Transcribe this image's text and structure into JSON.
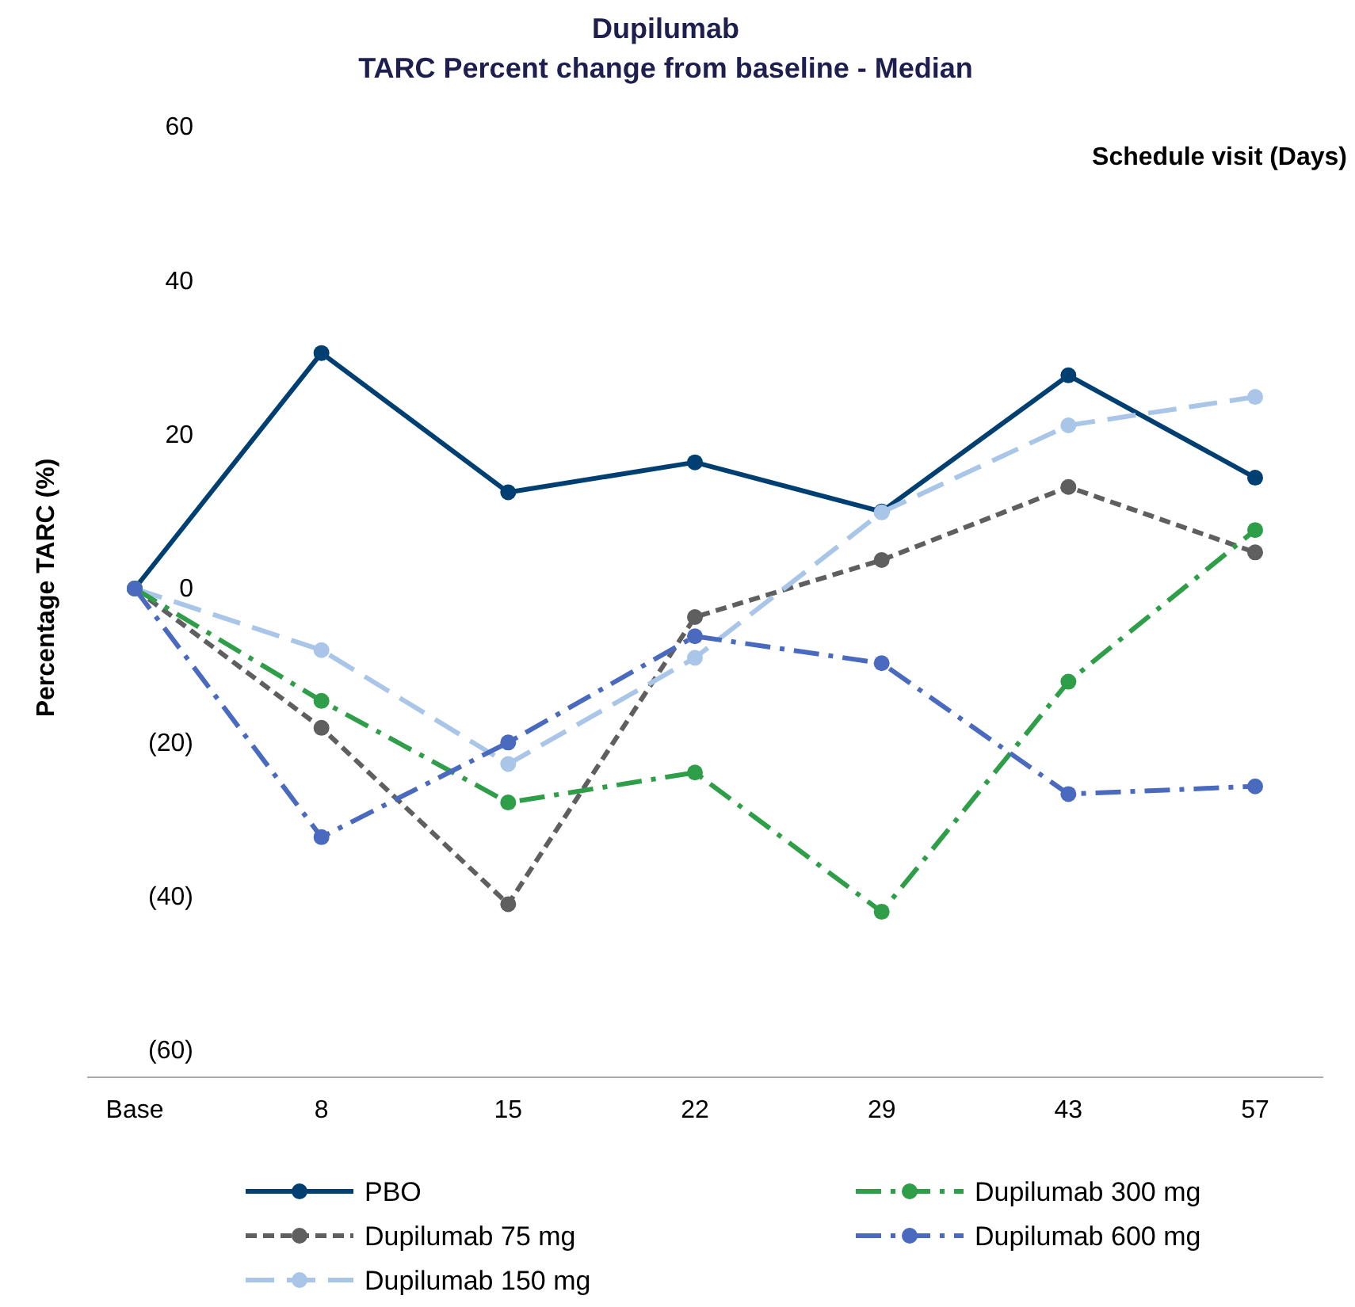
{
  "chart_data": {
    "type": "line",
    "title": "Dupilumab",
    "subtitle": "TARC Percent change from baseline - Median",
    "xlabel": "Schedule visit (Days)",
    "ylabel": "Percentage TARC (%)",
    "categories": [
      "Base",
      "8",
      "15",
      "22",
      "29",
      "43",
      "57"
    ],
    "ylim": [
      -60,
      60
    ],
    "yticks": [
      {
        "value": -60,
        "label": "(60)"
      },
      {
        "value": -40,
        "label": "(40)"
      },
      {
        "value": -20,
        "label": "(20)"
      },
      0,
      20,
      40,
      60
    ],
    "grid": false,
    "legend": "bottom",
    "marker": "circle",
    "series": [
      {
        "name": "PBO",
        "color": "#003f72",
        "line_style": "solid",
        "values": [
          0,
          30.6,
          12.5,
          16.4,
          10,
          27.7,
          14.4
        ]
      },
      {
        "name": "Dupilumab 75 mg",
        "color": "#5f5f5f",
        "line_style": "dashed",
        "values": [
          0,
          -18.1,
          -41,
          -3.7,
          3.7,
          13.2,
          4.7
        ]
      },
      {
        "name": "Dupilumab 150 mg",
        "color": "#a9c6e8",
        "line_style": "longdash",
        "values": [
          0,
          -8,
          -22.8,
          -9,
          9.9,
          21.2,
          24.9
        ]
      },
      {
        "name": "Dupilumab 300 mg",
        "color": "#2e9e48",
        "line_style": "dashdot",
        "values": [
          0,
          -14.6,
          -27.8,
          -23.9,
          -42,
          -12.1,
          7.6
        ]
      },
      {
        "name": "Dupilumab 600 mg",
        "color": "#4a6abf",
        "line_style": "dashdot",
        "values": [
          0,
          -32.3,
          -20,
          -6.2,
          -9.7,
          -26.7,
          -25.7
        ]
      }
    ]
  }
}
